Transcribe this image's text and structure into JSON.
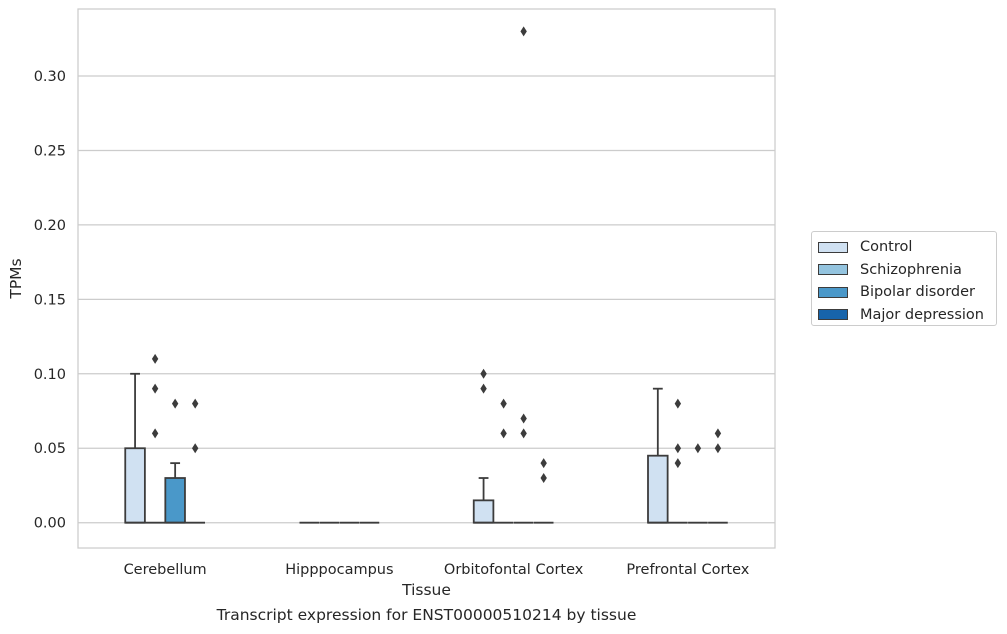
{
  "chart_data": {
    "type": "box",
    "ylabel": "TPMs",
    "xlabel": "Tissue",
    "caption": "Transcript expression for ENST00000510214 by tissue",
    "ylim": [
      -0.017,
      0.345
    ],
    "yticks": [
      0.0,
      0.05,
      0.1,
      0.15,
      0.2,
      0.25,
      0.3
    ],
    "ytick_labels": [
      "0.00",
      "0.05",
      "0.10",
      "0.15",
      "0.20",
      "0.25",
      "0.30"
    ],
    "grid": "horizontal",
    "legend_position": "outside-right",
    "categories": [
      "Cerebellum",
      "Hipppocampus",
      "Orbitofontal Cortex",
      "Prefrontal Cortex"
    ],
    "series": [
      {
        "name": "Control",
        "color": "#d0e1f2",
        "boxes": [
          {
            "q1": 0.0,
            "median": 0.0,
            "q3": 0.05,
            "whisker_low": 0.0,
            "whisker_high": 0.1,
            "outliers": []
          },
          {
            "q1": 0.0,
            "median": 0.0,
            "q3": 0.0,
            "whisker_low": 0.0,
            "whisker_high": 0.0,
            "outliers": []
          },
          {
            "q1": 0.0,
            "median": 0.0,
            "q3": 0.015,
            "whisker_low": 0.0,
            "whisker_high": 0.03,
            "outliers": [
              0.09,
              0.1
            ]
          },
          {
            "q1": 0.0,
            "median": 0.0,
            "q3": 0.045,
            "whisker_low": 0.0,
            "whisker_high": 0.09,
            "outliers": []
          }
        ]
      },
      {
        "name": "Schizophrenia",
        "color": "#94c4df",
        "boxes": [
          {
            "q1": 0.0,
            "median": 0.0,
            "q3": 0.0,
            "whisker_low": 0.0,
            "whisker_high": 0.0,
            "outliers": [
              0.06,
              0.09,
              0.11
            ]
          },
          {
            "q1": 0.0,
            "median": 0.0,
            "q3": 0.0,
            "whisker_low": 0.0,
            "whisker_high": 0.0,
            "outliers": []
          },
          {
            "q1": 0.0,
            "median": 0.0,
            "q3": 0.0,
            "whisker_low": 0.0,
            "whisker_high": 0.0,
            "outliers": [
              0.06,
              0.08
            ]
          },
          {
            "q1": 0.0,
            "median": 0.0,
            "q3": 0.0,
            "whisker_low": 0.0,
            "whisker_high": 0.0,
            "outliers": [
              0.04,
              0.05,
              0.08
            ]
          }
        ]
      },
      {
        "name": "Bipolar disorder",
        "color": "#4a98c9",
        "boxes": [
          {
            "q1": 0.0,
            "median": 0.0,
            "q3": 0.03,
            "whisker_low": 0.0,
            "whisker_high": 0.04,
            "outliers": [
              0.08
            ]
          },
          {
            "q1": 0.0,
            "median": 0.0,
            "q3": 0.0,
            "whisker_low": 0.0,
            "whisker_high": 0.0,
            "outliers": []
          },
          {
            "q1": 0.0,
            "median": 0.0,
            "q3": 0.0,
            "whisker_low": 0.0,
            "whisker_high": 0.0,
            "outliers": [
              0.06,
              0.07,
              0.33
            ]
          },
          {
            "q1": 0.0,
            "median": 0.0,
            "q3": 0.0,
            "whisker_low": 0.0,
            "whisker_high": 0.0,
            "outliers": [
              0.05
            ]
          }
        ]
      },
      {
        "name": "Major depression",
        "color": "#1764ab",
        "boxes": [
          {
            "q1": 0.0,
            "median": 0.0,
            "q3": 0.0,
            "whisker_low": 0.0,
            "whisker_high": 0.0,
            "outliers": [
              0.05,
              0.08
            ]
          },
          {
            "q1": 0.0,
            "median": 0.0,
            "q3": 0.0,
            "whisker_low": 0.0,
            "whisker_high": 0.0,
            "outliers": []
          },
          {
            "q1": 0.0,
            "median": 0.0,
            "q3": 0.0,
            "whisker_low": 0.0,
            "whisker_high": 0.0,
            "outliers": [
              0.03,
              0.04
            ]
          },
          {
            "q1": 0.0,
            "median": 0.0,
            "q3": 0.0,
            "whisker_low": 0.0,
            "whisker_high": 0.0,
            "outliers": [
              0.05,
              0.06
            ]
          }
        ]
      }
    ]
  }
}
